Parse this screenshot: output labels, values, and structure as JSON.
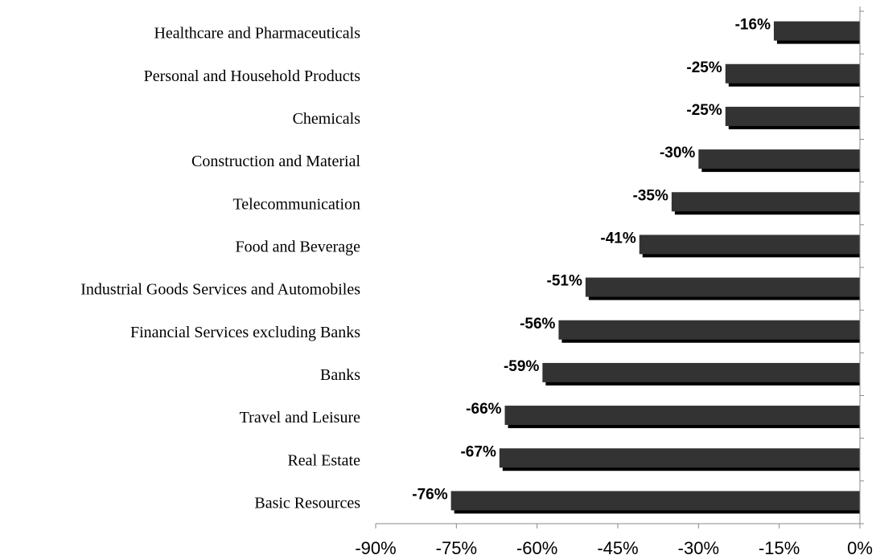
{
  "chart_data": {
    "type": "bar",
    "orientation": "horizontal",
    "categories": [
      "Healthcare and Pharmaceuticals",
      "Personal and Household Products",
      "Chemicals",
      "Construction and Material",
      "Telecommunication",
      "Food and Beverage",
      "Industrial Goods Services and Automobiles",
      "Financial Services excluding Banks",
      "Banks",
      "Travel and Leisure",
      "Real Estate",
      "Basic Resources"
    ],
    "values": [
      -16,
      -25,
      -25,
      -30,
      -35,
      -41,
      -51,
      -56,
      -59,
      -66,
      -67,
      -76
    ],
    "data_labels": [
      "-16%",
      "-25%",
      "-25%",
      "-30%",
      "-35%",
      "-41%",
      "-51%",
      "-56%",
      "-59%",
      "-66%",
      "-67%",
      "-76%"
    ],
    "xlim": [
      -90,
      0
    ],
    "x_ticks": [
      -90,
      -75,
      -60,
      -45,
      -30,
      -15,
      0
    ],
    "x_tick_labels": [
      "-90%",
      "-75%",
      "-60%",
      "-45%",
      "-30%",
      "-15%",
      "0%"
    ],
    "title": "",
    "xlabel": "",
    "ylabel": "",
    "grid": false,
    "legend": "none",
    "bar_color": "#333333",
    "bar_shadow_color": "#000000"
  }
}
